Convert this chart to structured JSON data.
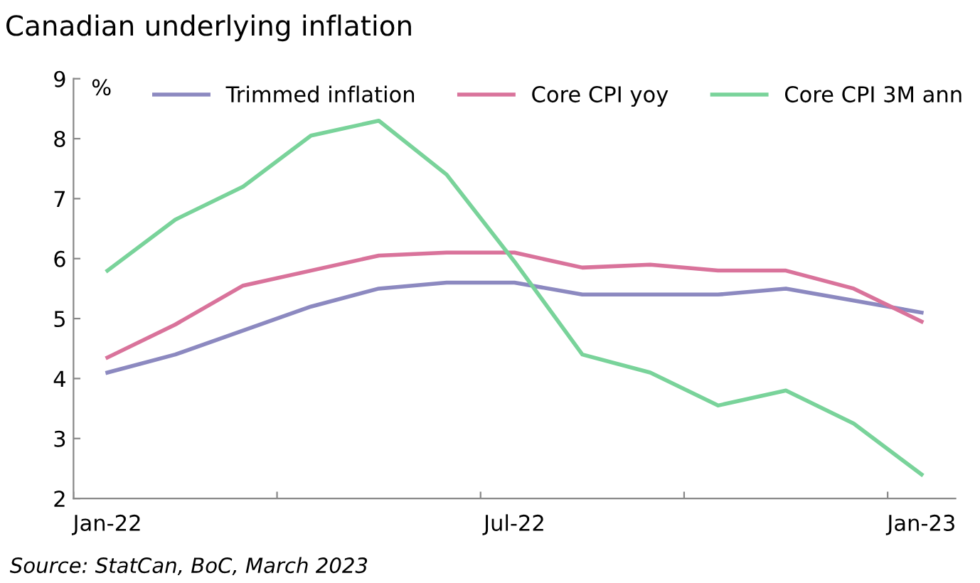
{
  "chart_data": {
    "type": "line",
    "title": "Canadian underlying inflation",
    "ylabel": "%",
    "categories": [
      "Jan-22",
      null,
      null,
      null,
      null,
      null,
      "Jul-22",
      null,
      null,
      null,
      null,
      null,
      "Jan-23"
    ],
    "series": [
      {
        "name": "Trimmed inflation",
        "color": "#8c89c0",
        "values": [
          4.1,
          4.4,
          4.8,
          5.2,
          5.5,
          5.6,
          5.6,
          5.4,
          5.4,
          5.4,
          5.5,
          5.3,
          5.1
        ]
      },
      {
        "name": "Core CPI yoy",
        "color": "#d9739b",
        "values": [
          4.35,
          4.9,
          5.55,
          5.8,
          6.05,
          6.1,
          6.1,
          5.85,
          5.9,
          5.8,
          5.8,
          5.5,
          4.95
        ]
      },
      {
        "name": "Core CPI 3M ann",
        "color": "#79d39a",
        "values": [
          5.8,
          6.65,
          7.2,
          8.05,
          8.3,
          7.4,
          5.95,
          4.4,
          4.1,
          3.55,
          3.8,
          3.25,
          2.4
        ]
      }
    ],
    "ylim": [
      2,
      9
    ],
    "yticks": [
      2,
      3,
      4,
      5,
      6,
      7,
      8,
      9
    ],
    "grid": false,
    "legend": "top",
    "marker": "none",
    "line_style": "solid",
    "annotations": [
      "Source: StatCan, BoC, March 2023"
    ]
  }
}
